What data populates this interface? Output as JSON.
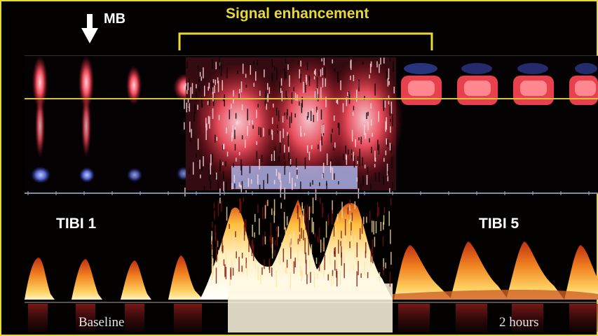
{
  "labels": {
    "microbubble": "MB",
    "signal_enhancement": "Signal enhancement",
    "tibi_left": "TIBI 1",
    "tibi_right": "TIBI 5",
    "baseline": "Baseline",
    "time_after": "2 hours"
  },
  "colors": {
    "frame_border": "#e8d838",
    "bracket": "#e8d838",
    "gate_line": "#d4c23a",
    "doppler_red": "#e0303a",
    "doppler_pink": "#f4b8c0",
    "doppler_blue": "#5868d0",
    "spectral_orange": "#f08020",
    "spectral_yellow": "#ffe070",
    "background": "#020100"
  },
  "icons": {
    "microbubble_arrow": "down-arrow-icon"
  }
}
